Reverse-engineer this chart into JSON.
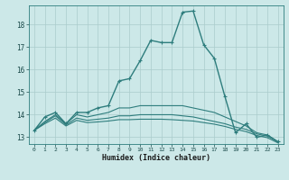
{
  "xlabel": "Humidex (Indice chaleur)",
  "ylabel": "",
  "bg_color": "#cce8e8",
  "line_color": "#2e7d7d",
  "grid_color": "#aacccc",
  "xlim": [
    -0.5,
    23.5
  ],
  "ylim": [
    12.7,
    18.85
  ],
  "xticks": [
    0,
    1,
    2,
    3,
    4,
    5,
    6,
    7,
    8,
    9,
    10,
    11,
    12,
    13,
    14,
    15,
    16,
    17,
    18,
    19,
    20,
    21,
    22,
    23
  ],
  "yticks": [
    13,
    14,
    15,
    16,
    17,
    18
  ],
  "series": [
    {
      "x": [
        0,
        1,
        2,
        3,
        4,
        5,
        6,
        7,
        8,
        9,
        10,
        11,
        12,
        13,
        14,
        15,
        16,
        17,
        18,
        19,
        20,
        21,
        22,
        23
      ],
      "y": [
        13.3,
        13.9,
        14.1,
        13.6,
        14.1,
        14.1,
        14.3,
        14.4,
        15.5,
        15.6,
        16.4,
        17.3,
        17.2,
        17.2,
        18.55,
        18.6,
        17.1,
        16.5,
        14.8,
        13.2,
        13.6,
        13.0,
        13.1,
        12.8
      ],
      "marker": "+"
    },
    {
      "x": [
        0,
        1,
        2,
        3,
        4,
        5,
        6,
        7,
        8,
        9,
        10,
        11,
        12,
        13,
        14,
        15,
        16,
        17,
        18,
        19,
        20,
        21,
        22,
        23
      ],
      "y": [
        13.3,
        13.7,
        14.0,
        13.6,
        14.0,
        13.9,
        14.0,
        14.1,
        14.3,
        14.3,
        14.4,
        14.4,
        14.4,
        14.4,
        14.4,
        14.3,
        14.2,
        14.1,
        13.9,
        13.7,
        13.5,
        13.2,
        13.1,
        12.8
      ],
      "marker": null
    },
    {
      "x": [
        0,
        1,
        2,
        3,
        4,
        5,
        6,
        7,
        8,
        9,
        10,
        11,
        12,
        13,
        14,
        15,
        16,
        17,
        18,
        19,
        20,
        21,
        22,
        23
      ],
      "y": [
        13.3,
        13.65,
        13.95,
        13.55,
        13.85,
        13.75,
        13.8,
        13.85,
        13.95,
        13.95,
        14.0,
        14.0,
        14.0,
        14.0,
        13.95,
        13.9,
        13.8,
        13.7,
        13.6,
        13.45,
        13.35,
        13.15,
        13.05,
        12.8
      ],
      "marker": null
    },
    {
      "x": [
        0,
        1,
        2,
        3,
        4,
        5,
        6,
        7,
        8,
        9,
        10,
        11,
        12,
        13,
        14,
        15,
        16,
        17,
        18,
        19,
        20,
        21,
        22,
        23
      ],
      "y": [
        13.3,
        13.6,
        13.85,
        13.5,
        13.75,
        13.65,
        13.68,
        13.72,
        13.78,
        13.78,
        13.8,
        13.8,
        13.8,
        13.78,
        13.75,
        13.72,
        13.65,
        13.58,
        13.48,
        13.35,
        13.25,
        13.08,
        12.98,
        12.75
      ],
      "marker": null
    }
  ]
}
